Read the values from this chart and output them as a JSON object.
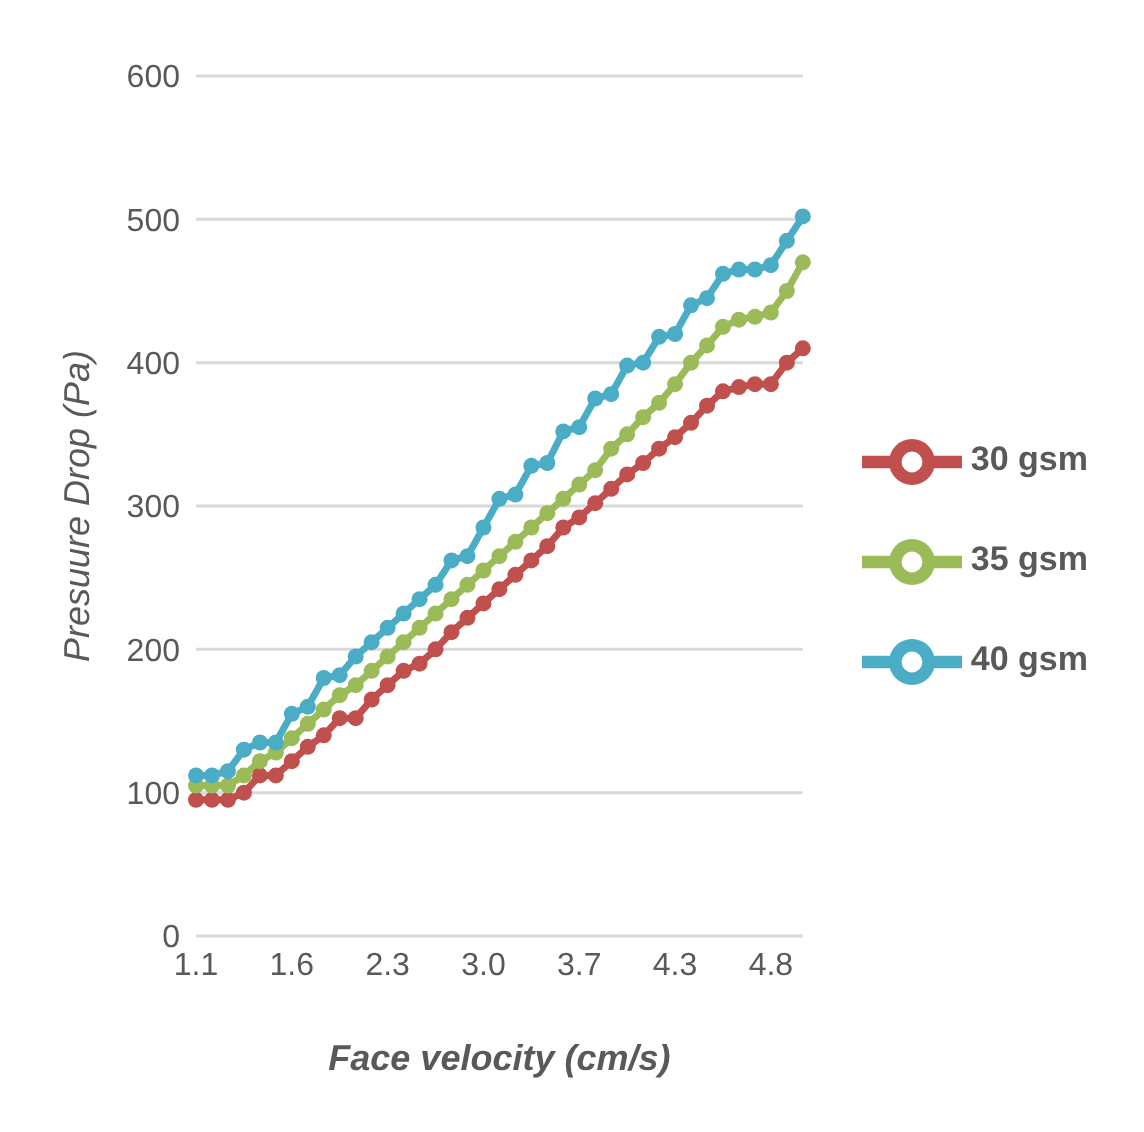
{
  "chart_data": {
    "type": "line",
    "xlabel": "Face velocity (cm/s)",
    "ylabel": "Presuure Drop (Pa)",
    "categories": [
      "1.1",
      null,
      null,
      null,
      null,
      null,
      "1.6",
      null,
      null,
      null,
      null,
      null,
      "2.3",
      null,
      null,
      null,
      null,
      null,
      "3.0",
      null,
      null,
      null,
      null,
      null,
      "3.7",
      null,
      null,
      null,
      null,
      null,
      "4.3",
      null,
      null,
      null,
      null,
      null,
      "4.8",
      null,
      null
    ],
    "series": [
      {
        "name": "30 gsm",
        "color": "#c0504d",
        "values": [
          95,
          95,
          95,
          100,
          112,
          112,
          122,
          132,
          140,
          152,
          152,
          165,
          175,
          185,
          190,
          200,
          212,
          222,
          232,
          242,
          252,
          262,
          272,
          285,
          292,
          302,
          312,
          322,
          330,
          340,
          348,
          358,
          370,
          380,
          383,
          385,
          385,
          400,
          410
        ]
      },
      {
        "name": "35 gsm",
        "color": "#9bbb59",
        "values": [
          105,
          105,
          105,
          112,
          122,
          128,
          138,
          148,
          158,
          168,
          175,
          185,
          195,
          205,
          215,
          225,
          235,
          245,
          255,
          265,
          275,
          285,
          295,
          305,
          315,
          325,
          340,
          350,
          362,
          372,
          385,
          400,
          412,
          425,
          430,
          432,
          435,
          450,
          470
        ]
      },
      {
        "name": "40 gsm",
        "color": "#4bacc6",
        "values": [
          112,
          112,
          115,
          130,
          135,
          135,
          155,
          160,
          180,
          182,
          195,
          205,
          215,
          225,
          235,
          245,
          262,
          265,
          285,
          305,
          308,
          328,
          330,
          352,
          355,
          375,
          378,
          398,
          400,
          418,
          420,
          440,
          445,
          462,
          465,
          465,
          468,
          485,
          502
        ]
      }
    ],
    "ylim": [
      0,
      600
    ],
    "yticks": [
      0,
      100,
      200,
      300,
      400,
      500,
      600
    ],
    "grid": "y",
    "legend": "right",
    "marker": "circle",
    "line_style": "solid"
  }
}
